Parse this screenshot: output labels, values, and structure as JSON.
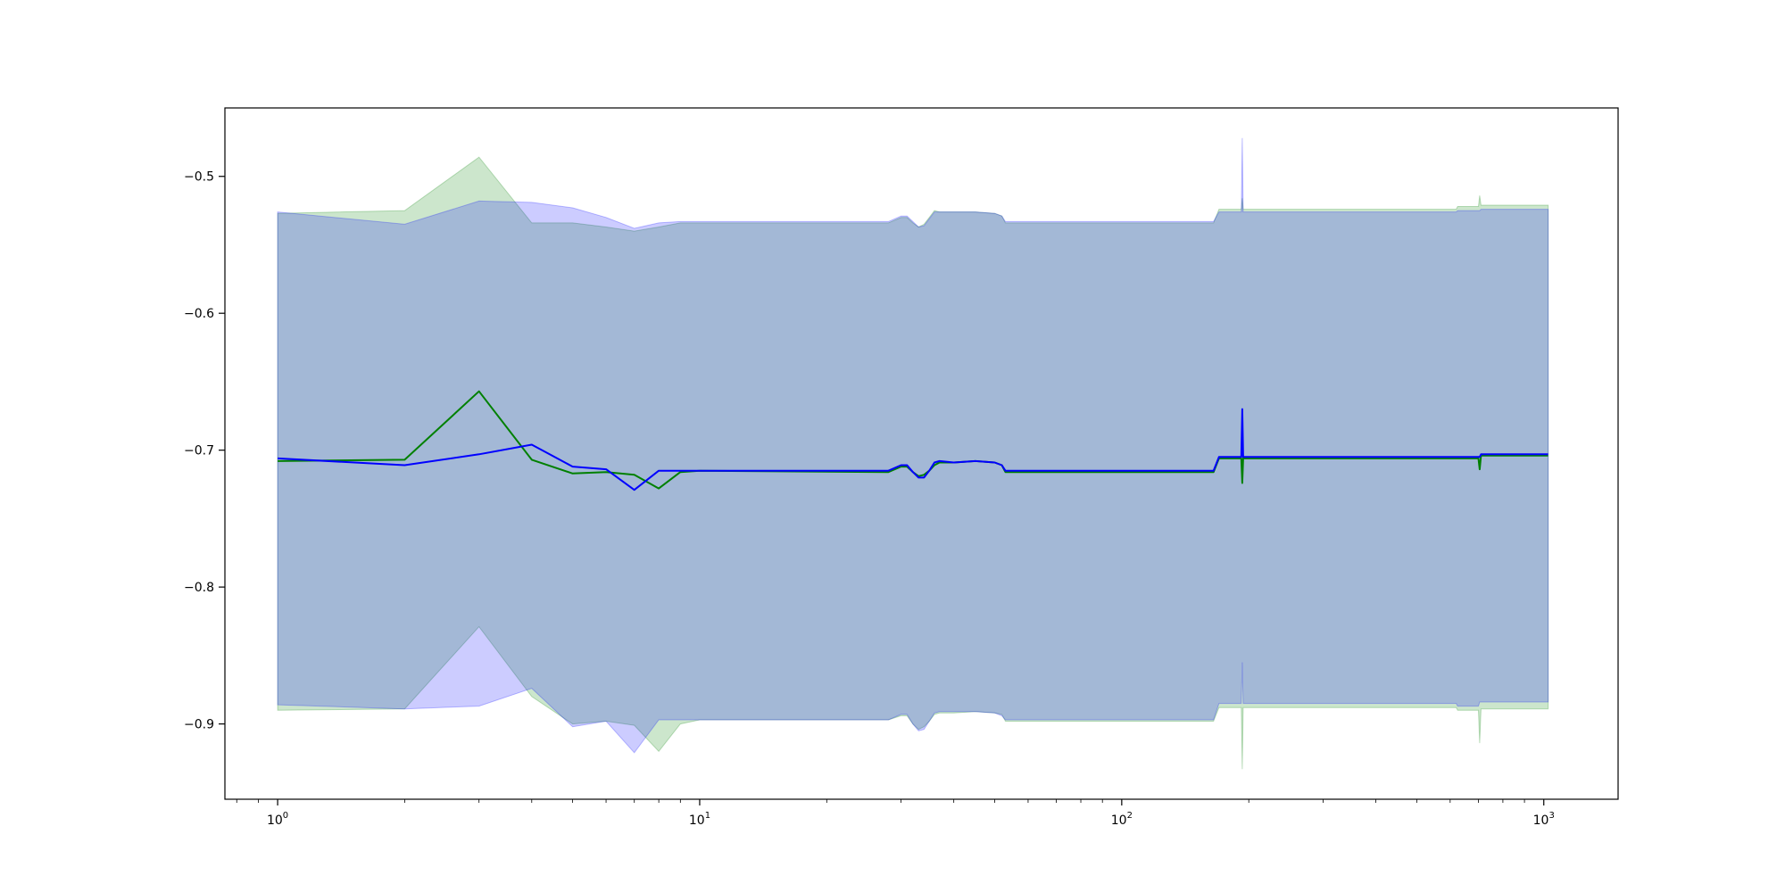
{
  "chart_data": {
    "type": "area",
    "title": "",
    "xlabel": "",
    "ylabel": "",
    "xscale": "log",
    "xlim": [
      0.75,
      1500
    ],
    "ylim": [
      -0.955,
      -0.45
    ],
    "grid": false,
    "legend": "none",
    "x_ticks": [
      {
        "value": 1,
        "label": "10",
        "exp": "0"
      },
      {
        "value": 10,
        "label": "10",
        "exp": "1"
      },
      {
        "value": 100,
        "label": "10",
        "exp": "2"
      },
      {
        "value": 1000,
        "label": "10",
        "exp": "3"
      }
    ],
    "y_ticks": [
      {
        "value": -0.5,
        "label": "−0.5"
      },
      {
        "value": -0.6,
        "label": "−0.6"
      },
      {
        "value": -0.7,
        "label": "−0.7"
      },
      {
        "value": -0.8,
        "label": "−0.8"
      },
      {
        "value": -0.9,
        "label": "−0.9"
      }
    ],
    "series": [
      {
        "color": "#008000",
        "fill_color": "#008000",
        "fill_opacity": 0.2,
        "x": [
          1,
          2,
          3,
          4,
          5,
          6,
          7,
          8,
          9,
          10,
          28,
          30,
          31,
          32,
          33,
          34,
          35,
          36,
          37,
          40,
          45,
          50,
          52,
          53,
          100,
          150,
          165,
          170,
          190,
          192,
          193,
          194,
          195,
          200,
          300,
          500,
          620,
          625,
          700,
          705,
          710,
          715,
          1024
        ],
        "mean": [
          -0.708,
          -0.707,
          -0.657,
          -0.707,
          -0.717,
          -0.716,
          -0.718,
          -0.728,
          -0.716,
          -0.715,
          -0.716,
          -0.712,
          -0.712,
          -0.716,
          -0.719,
          -0.718,
          -0.715,
          -0.711,
          -0.709,
          -0.709,
          -0.708,
          -0.709,
          -0.711,
          -0.716,
          -0.716,
          -0.716,
          -0.716,
          -0.706,
          -0.706,
          -0.706,
          -0.724,
          -0.706,
          -0.706,
          -0.706,
          -0.706,
          -0.706,
          -0.706,
          -0.706,
          -0.706,
          -0.714,
          -0.704,
          -0.704,
          -0.704
        ],
        "upper": [
          -0.527,
          -0.525,
          -0.486,
          -0.534,
          -0.534,
          -0.537,
          -0.54,
          -0.537,
          -0.534,
          -0.534,
          -0.534,
          -0.53,
          -0.53,
          -0.534,
          -0.537,
          -0.535,
          -0.53,
          -0.525,
          -0.526,
          -0.526,
          -0.526,
          -0.527,
          -0.529,
          -0.534,
          -0.534,
          -0.534,
          -0.534,
          -0.524,
          -0.524,
          -0.524,
          -0.516,
          -0.524,
          -0.524,
          -0.524,
          -0.524,
          -0.524,
          -0.524,
          -0.522,
          -0.522,
          -0.514,
          -0.521,
          -0.521,
          -0.521
        ],
        "lower": [
          -0.89,
          -0.889,
          -0.829,
          -0.88,
          -0.9,
          -0.898,
          -0.901,
          -0.92,
          -0.9,
          -0.897,
          -0.897,
          -0.894,
          -0.894,
          -0.9,
          -0.904,
          -0.902,
          -0.898,
          -0.893,
          -0.892,
          -0.892,
          -0.891,
          -0.892,
          -0.893,
          -0.898,
          -0.898,
          -0.898,
          -0.898,
          -0.888,
          -0.888,
          -0.888,
          -0.933,
          -0.888,
          -0.888,
          -0.888,
          -0.888,
          -0.888,
          -0.888,
          -0.89,
          -0.89,
          -0.914,
          -0.889,
          -0.889,
          -0.889
        ]
      },
      {
        "color": "#0000ff",
        "fill_color": "#0000ff",
        "fill_opacity": 0.2,
        "x": [
          1,
          2,
          3,
          4,
          5,
          6,
          7,
          8,
          9,
          10,
          28,
          30,
          31,
          32,
          33,
          34,
          35,
          36,
          37,
          40,
          45,
          50,
          52,
          53,
          100,
          150,
          165,
          170,
          190,
          192,
          193,
          194,
          195,
          200,
          300,
          500,
          620,
          625,
          700,
          705,
          710,
          715,
          1024
        ],
        "mean": [
          -0.706,
          -0.711,
          -0.703,
          -0.696,
          -0.712,
          -0.714,
          -0.729,
          -0.715,
          -0.715,
          -0.715,
          -0.715,
          -0.711,
          -0.711,
          -0.716,
          -0.72,
          -0.72,
          -0.715,
          -0.709,
          -0.708,
          -0.709,
          -0.708,
          -0.709,
          -0.711,
          -0.715,
          -0.715,
          -0.715,
          -0.715,
          -0.705,
          -0.705,
          -0.705,
          -0.67,
          -0.705,
          -0.705,
          -0.705,
          -0.705,
          -0.705,
          -0.705,
          -0.705,
          -0.705,
          -0.705,
          -0.703,
          -0.703,
          -0.703
        ],
        "upper": [
          -0.526,
          -0.535,
          -0.518,
          -0.519,
          -0.523,
          -0.53,
          -0.538,
          -0.534,
          -0.533,
          -0.533,
          -0.533,
          -0.529,
          -0.529,
          -0.533,
          -0.537,
          -0.536,
          -0.531,
          -0.526,
          -0.526,
          -0.526,
          -0.526,
          -0.527,
          -0.529,
          -0.533,
          -0.533,
          -0.533,
          -0.533,
          -0.526,
          -0.526,
          -0.526,
          -0.472,
          -0.526,
          -0.526,
          -0.526,
          -0.526,
          -0.526,
          -0.526,
          -0.525,
          -0.525,
          -0.525,
          -0.524,
          -0.524,
          -0.524
        ],
        "lower": [
          -0.886,
          -0.889,
          -0.887,
          -0.874,
          -0.902,
          -0.898,
          -0.921,
          -0.897,
          -0.897,
          -0.897,
          -0.897,
          -0.893,
          -0.893,
          -0.9,
          -0.905,
          -0.904,
          -0.898,
          -0.892,
          -0.891,
          -0.891,
          -0.891,
          -0.892,
          -0.894,
          -0.897,
          -0.897,
          -0.897,
          -0.897,
          -0.885,
          -0.885,
          -0.885,
          -0.855,
          -0.885,
          -0.885,
          -0.885,
          -0.885,
          -0.885,
          -0.885,
          -0.887,
          -0.887,
          -0.884,
          -0.884,
          -0.884,
          -0.884
        ]
      }
    ]
  }
}
